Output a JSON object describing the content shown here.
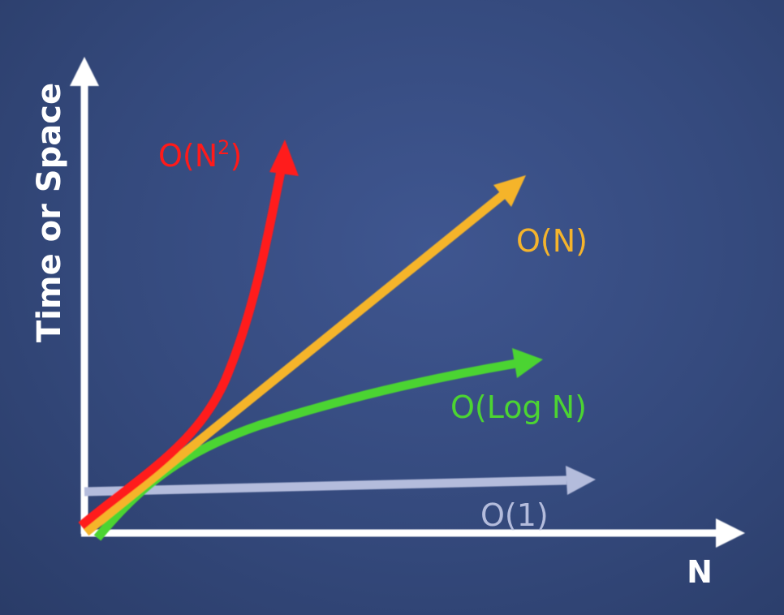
{
  "chart_data": {
    "type": "line",
    "title": "",
    "xlabel": "N",
    "ylabel": "Time or Space",
    "background": "#34497c",
    "axis_color": "#ffffff",
    "grid": false,
    "series": [
      {
        "name": "O(N²)",
        "label_main": "O(N",
        "label_sup": "2",
        "label_close": ")",
        "color": "#ff1a1a",
        "shape": "quadratic"
      },
      {
        "name": "O(N)",
        "color": "#f5b42c",
        "shape": "linear"
      },
      {
        "name": "O(Log N)",
        "color": "#4cd432",
        "shape": "logarithmic"
      },
      {
        "name": "O(1)",
        "color": "#b4bcdc",
        "shape": "constant"
      }
    ]
  }
}
